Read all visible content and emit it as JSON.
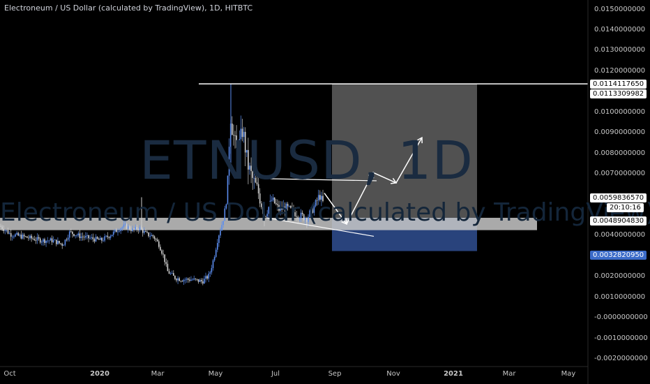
{
  "header": {
    "title": "Electroneum / US Dollar (calculated by TradingView), 1D, HITBTC"
  },
  "watermark": {
    "symbol": "ETNUSD, 1D",
    "description": "Electroneum / US Dollar (calculated by TradingView)"
  },
  "colors": {
    "up": "#5b8def",
    "down": "#d0d0d0",
    "background": "#000000",
    "target_zone": "#5f5f5f",
    "stop_zone": "#2e4a8a",
    "support_band": "#c8c8c8"
  },
  "chart_data": {
    "type": "candlestick",
    "y_axis": {
      "ticks": [
        "0.0150000000",
        "0.0140000000",
        "0.0130000000",
        "0.0120000000",
        "0.0100000000",
        "0.0090000000",
        "0.0080000000",
        "0.0070000000",
        "0.0040000000",
        "0.0030000000",
        "0.0020000000",
        "0.0010000000",
        "-0.0000000000",
        "-0.0010000000",
        "-0.0020000000"
      ],
      "range": [
        -0.002,
        0.015
      ]
    },
    "x_axis": {
      "ticks": [
        {
          "label": "Oct",
          "bold": false
        },
        {
          "label": "2020",
          "bold": true
        },
        {
          "label": "Mar",
          "bold": false
        },
        {
          "label": "May",
          "bold": false
        },
        {
          "label": "Jul",
          "bold": false
        },
        {
          "label": "Sep",
          "bold": false
        },
        {
          "label": "Nov",
          "bold": false
        },
        {
          "label": "2021",
          "bold": true
        },
        {
          "label": "Mar",
          "bold": false
        },
        {
          "label": "May",
          "bold": false
        }
      ]
    },
    "price_labels": [
      {
        "value": "0.0114117650",
        "style": "white"
      },
      {
        "value": "0.0113309982",
        "style": "white"
      },
      {
        "value": "0.0059836570",
        "style": "white"
      },
      {
        "value": "20:10:16",
        "style": "countdown"
      },
      {
        "value": "0.0048904830",
        "style": "white"
      },
      {
        "value": "0.0032820950",
        "style": "blue"
      }
    ],
    "price_path": [
      [
        0,
        0.0045
      ],
      [
        15,
        0.0041
      ],
      [
        30,
        0.004
      ],
      [
        45,
        0.0039
      ],
      [
        60,
        0.0038
      ],
      [
        75,
        0.0038
      ],
      [
        90,
        0.0036
      ],
      [
        100,
        0.0042
      ],
      [
        115,
        0.004
      ],
      [
        130,
        0.0039
      ],
      [
        145,
        0.0038
      ],
      [
        160,
        0.0041
      ],
      [
        172,
        0.0044
      ],
      [
        180,
        0.0045
      ],
      [
        190,
        0.0043
      ],
      [
        200,
        0.0044
      ],
      [
        210,
        0.0041
      ],
      [
        220,
        0.004
      ],
      [
        228,
        0.0036
      ],
      [
        235,
        0.003
      ],
      [
        240,
        0.0023
      ],
      [
        250,
        0.002
      ],
      [
        260,
        0.0019
      ],
      [
        275,
        0.0019
      ],
      [
        290,
        0.0018
      ],
      [
        300,
        0.0021
      ],
      [
        307,
        0.003
      ],
      [
        313,
        0.004
      ],
      [
        320,
        0.0048
      ],
      [
        326,
        0.006
      ],
      [
        330,
        0.01
      ],
      [
        334,
        0.009
      ],
      [
        340,
        0.008
      ],
      [
        348,
        0.0092
      ],
      [
        355,
        0.0075
      ],
      [
        362,
        0.0068
      ],
      [
        372,
        0.006
      ],
      [
        380,
        0.005
      ],
      [
        390,
        0.0058
      ],
      [
        400,
        0.0053
      ],
      [
        410,
        0.0054
      ],
      [
        420,
        0.0052
      ],
      [
        430,
        0.005
      ],
      [
        440,
        0.0049
      ],
      [
        450,
        0.0054
      ],
      [
        458,
        0.006
      ],
      [
        465,
        0.0055
      ]
    ],
    "annotations": {
      "resistance_level": 0.011411765,
      "support_band": [
        0.0043,
        0.0049
      ],
      "target_zone": [
        0.0049,
        0.011411765
      ],
      "stop_zone": [
        0.003282095,
        0.0049
      ],
      "entry_price": 0.004890483,
      "stop_price": 0.003282095
    }
  }
}
